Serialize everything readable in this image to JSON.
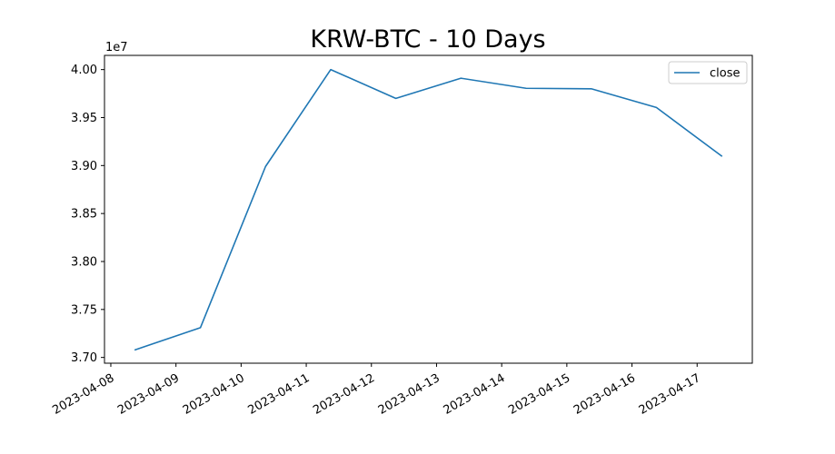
{
  "chart_data": {
    "type": "line",
    "title": "KRW-BTC - 10 Days",
    "xlabel": "",
    "ylabel": "",
    "y_offset_label": "1e7",
    "y_scale_factor": 10000000,
    "x_tick_labels": [
      "2023-04-08",
      "2023-04-09",
      "2023-04-10",
      "2023-04-11",
      "2023-04-12",
      "2023-04-13",
      "2023-04-14",
      "2023-04-15",
      "2023-04-16",
      "2023-04-17"
    ],
    "y_tick_labels": [
      "3.70",
      "3.75",
      "3.80",
      "3.85",
      "3.90",
      "3.95",
      "4.00"
    ],
    "y_ticks": [
      37000000,
      37500000,
      38000000,
      38500000,
      39000000,
      39500000,
      40000000
    ],
    "xlim": [
      "2023-04-07 21:40",
      "2023-04-17 20:20"
    ],
    "ylim": [
      36940000,
      40148000
    ],
    "grid": false,
    "legend": {
      "placement": "top-right",
      "entries": [
        "close"
      ]
    },
    "series": [
      {
        "name": "close",
        "color": "#1f77b4",
        "x": [
          "2023-04-08 09:00",
          "2023-04-09 09:00",
          "2023-04-10 09:00",
          "2023-04-11 09:00",
          "2023-04-12 09:00",
          "2023-04-13 09:00",
          "2023-04-14 09:00",
          "2023-04-15 09:00",
          "2023-04-16 09:00",
          "2023-04-17 09:00"
        ],
        "y": [
          37080000,
          37310000,
          38990000,
          40000000,
          39700000,
          39910000,
          39805000,
          39800000,
          39605000,
          39100000
        ]
      }
    ]
  }
}
